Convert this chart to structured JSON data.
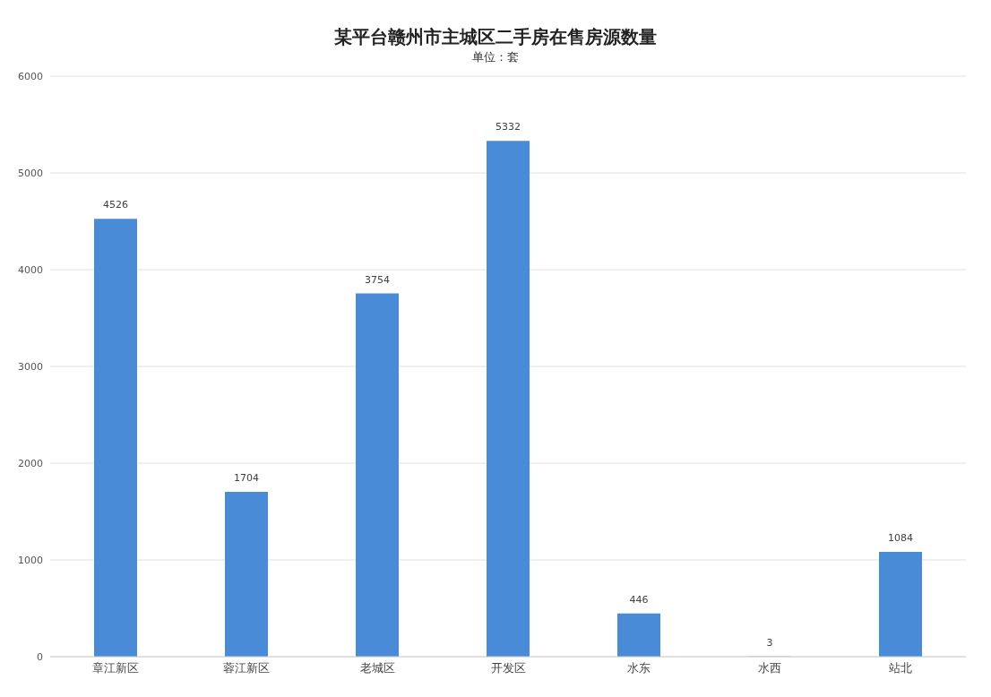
{
  "chart_data": {
    "type": "bar",
    "title": "某平台赣州市主城区二手房在售房源数量",
    "subtitle": "单位：套",
    "categories": [
      "章江新区",
      "蓉江新区",
      "老城区",
      "开发区",
      "水东",
      "水西",
      "站北"
    ],
    "values": [
      4526,
      1704,
      3754,
      5332,
      446,
      3,
      1084
    ],
    "color": "#4a8bd8",
    "ylim": [
      0,
      6000
    ],
    "yticks": [
      0,
      1000,
      2000,
      3000,
      4000,
      5000,
      6000
    ],
    "grid": "y",
    "data_labels": true,
    "legend": false
  }
}
